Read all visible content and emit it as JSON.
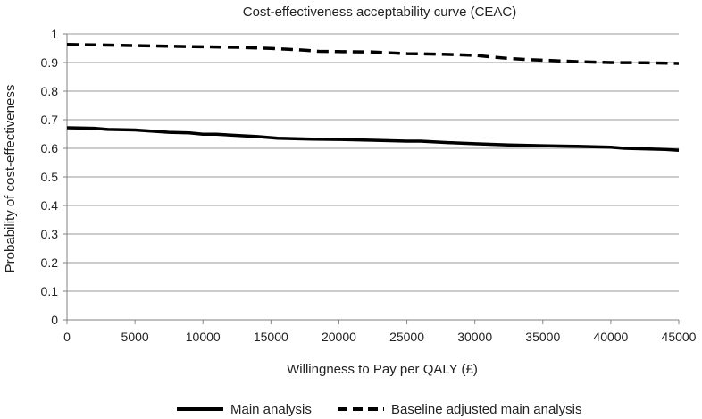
{
  "chart_data": {
    "type": "line",
    "title": "Cost-effectiveness acceptability curve (CEAC)",
    "xlabel": "Willingness to Pay per QALY (£)",
    "ylabel": "Probability of cost-effectiveness",
    "xlim": [
      0,
      45000
    ],
    "ylim": [
      0,
      1
    ],
    "xticks": [
      "0",
      "5000",
      "10000",
      "15000",
      "20000",
      "25000",
      "30000",
      "35000",
      "40000",
      "45000"
    ],
    "yticks": [
      "0",
      "0.1",
      "0.2",
      "0.3",
      "0.4",
      "0.5",
      "0.6",
      "0.7",
      "0.8",
      "0.9",
      "1"
    ],
    "grid": true,
    "legend_position": "bottom",
    "series": [
      {
        "name": "Main analysis",
        "style": "solid",
        "color": "#000000",
        "x": [
          0,
          2000,
          3000,
          5000,
          7500,
          9000,
          10000,
          11000,
          12500,
          14000,
          15500,
          18000,
          20000,
          22500,
          25000,
          26000,
          28000,
          30000,
          32500,
          35000,
          37500,
          40000,
          41000,
          42500,
          44000,
          45000
        ],
        "y": [
          0.672,
          0.67,
          0.666,
          0.664,
          0.656,
          0.654,
          0.649,
          0.649,
          0.645,
          0.641,
          0.635,
          0.632,
          0.631,
          0.628,
          0.625,
          0.625,
          0.62,
          0.616,
          0.612,
          0.609,
          0.607,
          0.604,
          0.6,
          0.598,
          0.596,
          0.593
        ]
      },
      {
        "name": "Baseline adjusted main analysis",
        "style": "dashed",
        "color": "#000000",
        "x": [
          0,
          2000,
          5000,
          10000,
          12500,
          15000,
          16000,
          17500,
          18500,
          20000,
          22500,
          25000,
          27500,
          30000,
          32500,
          34000,
          35000,
          37500,
          40000,
          42500,
          45000
        ],
        "y": [
          0.963,
          0.962,
          0.959,
          0.955,
          0.953,
          0.949,
          0.947,
          0.943,
          0.939,
          0.938,
          0.937,
          0.931,
          0.929,
          0.925,
          0.914,
          0.91,
          0.908,
          0.903,
          0.9,
          0.899,
          0.897
        ]
      }
    ]
  }
}
